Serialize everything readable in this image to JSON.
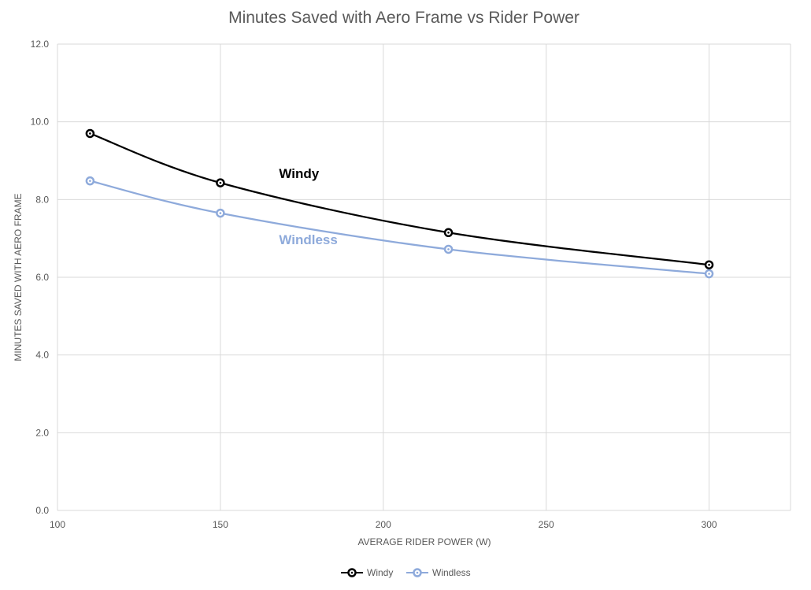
{
  "chart_data": {
    "type": "line",
    "title": "Minutes Saved with Aero Frame vs Rider Power",
    "xlabel": "AVERAGE RIDER POWER (W)",
    "ylabel": "MINUTES SAVED WITH AERO FRAME",
    "xlim": [
      100,
      325
    ],
    "ylim": [
      0,
      12
    ],
    "xticks": [
      100,
      150,
      200,
      250,
      300
    ],
    "yticks": [
      0,
      2,
      4,
      6,
      8,
      10,
      12
    ],
    "xtick_labels": [
      "100",
      "150",
      "200",
      "250",
      "300"
    ],
    "ytick_labels": [
      "0.0",
      "2.0",
      "4.0",
      "6.0",
      "8.0",
      "10.0",
      "12.0"
    ],
    "grid": true,
    "legend_position": "bottom",
    "series": [
      {
        "name": "Windy",
        "color": "#000000",
        "x": [
          110,
          150,
          220,
          300
        ],
        "y": [
          9.7,
          8.43,
          7.15,
          6.32
        ]
      },
      {
        "name": "Windless",
        "color": "#8eaadb",
        "x": [
          110,
          150,
          220,
          300
        ],
        "y": [
          8.48,
          7.65,
          6.72,
          6.09
        ]
      }
    ],
    "annotations": [
      {
        "text": "Windy",
        "color": "#000000",
        "x": 168,
        "y": 8.55
      },
      {
        "text": "Windless",
        "color": "#8eaadb",
        "x": 168,
        "y": 6.85
      }
    ]
  }
}
